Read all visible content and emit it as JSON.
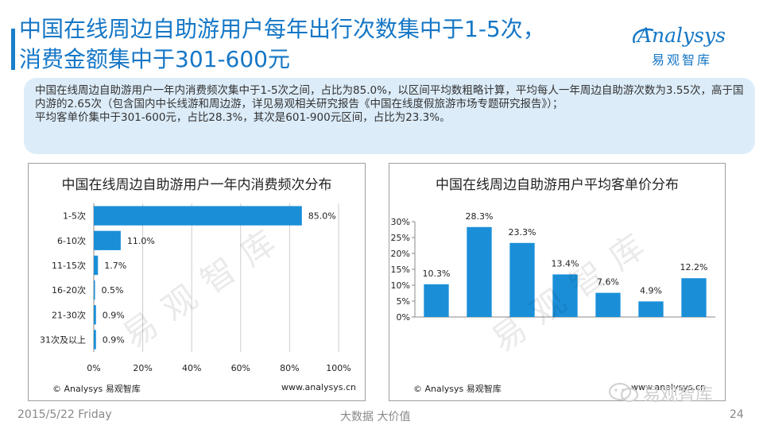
{
  "header": {
    "title_line1": "中国在线周边自助游用户每年出行次数集中于1-5次，",
    "title_line2": "消费金额集中于301-600元",
    "logo_word": "Analysys",
    "logo_cn": "易观智库"
  },
  "summary": {
    "paragraph1": "中国在线周边自助游用户一年内消费频次集中于1-5次之间，占比为85.0%，以区间平均数粗略计算，平均每人一年周边自助游次数为3.55次，高于国内游的2.65次（包含国内中长线游和周边游，详见易观相关研究报告《中国在线度假旅游市场专题研究报告》）；",
    "paragraph2": "平均客单价集中于301-600元，占比28.3%，其次是601-900元区间，占比为23.3%。"
  },
  "chart_data": [
    {
      "type": "bar",
      "orientation": "horizontal",
      "title": "中国在线周边自助游用户一年内消费频次分布",
      "categories": [
        "1-5次",
        "6-10次",
        "11-15次",
        "16-20次",
        "21-30次",
        "31次及以上"
      ],
      "values": [
        85.0,
        11.0,
        1.7,
        0.5,
        0.9,
        0.9
      ],
      "value_labels": [
        "85.0%",
        "11.0%",
        "1.7%",
        "0.5%",
        "0.9%",
        "0.9%"
      ],
      "xlim": [
        0,
        100
      ],
      "xticks": [
        "0%",
        "20%",
        "40%",
        "60%",
        "80%",
        "100%"
      ],
      "grid": true,
      "color": "#1a8fd8"
    },
    {
      "type": "bar",
      "title": "中国在线周边自助游用户平均客单价分布",
      "categories": [
        "",
        "",
        "",
        "",
        "",
        "",
        ""
      ],
      "values": [
        10.3,
        28.3,
        23.3,
        13.4,
        7.6,
        4.9,
        12.2
      ],
      "value_labels": [
        "10.3%",
        "28.3%",
        "23.3%",
        "13.4%",
        "7.6%",
        "4.9%",
        "12.2%"
      ],
      "ylim": [
        0,
        30
      ],
      "yticks": [
        "0%",
        "5%",
        "10%",
        "15%",
        "20%",
        "25%",
        "30%"
      ],
      "grid": false,
      "color": "#1a8fd8"
    }
  ],
  "credits": {
    "copyright": "© Analysys 易观智库",
    "site": "www.analysys.cn"
  },
  "watermark": "易观智库",
  "wechat": {
    "label": "易观智库"
  },
  "footer": {
    "date": "2015/5/22 Friday",
    "tagline": "大数据   大价值",
    "page": "24"
  }
}
